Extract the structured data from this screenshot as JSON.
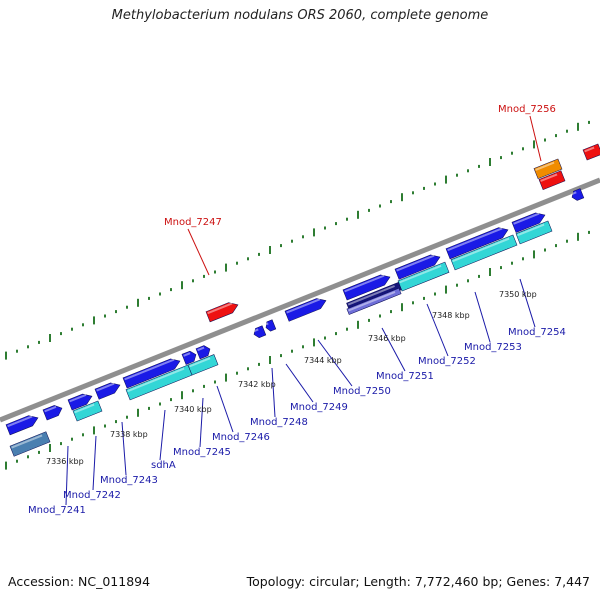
{
  "title": "Methylobacterium nodulans ORS 2060, complete genome",
  "footer": {
    "accession": "Accession: NC_011894",
    "summary": "Topology: circular; Length: 7,772,460 bp; Genes: 7,447"
  },
  "colors": {
    "backbone": "#8f8f8f",
    "tick": "#2e7d32",
    "forward_gene": "#1a1ae6",
    "cds": "#33d6d6",
    "highlight_gene": "#ee1111",
    "orange_gene": "#f08c00",
    "dark_gene": "#15157a",
    "pale_gene": "#6e6ed8",
    "steel_gene": "#4a7fb0",
    "label_blue": "#1a1aa8",
    "label_red": "#cc1111"
  },
  "kbp_labels": [
    "7336 kbp",
    "7338 kbp",
    "7340 kbp",
    "7342 kbp",
    "7344 kbp",
    "7346 kbp",
    "7348 kbp",
    "7350 kbp"
  ],
  "gene_labels": [
    {
      "text": "Mnod_7241",
      "color": "blue"
    },
    {
      "text": "Mnod_7242",
      "color": "blue"
    },
    {
      "text": "Mnod_7243",
      "color": "blue"
    },
    {
      "text": "sdhA",
      "color": "blue"
    },
    {
      "text": "Mnod_7245",
      "color": "blue"
    },
    {
      "text": "Mnod_7246",
      "color": "blue"
    },
    {
      "text": "Mnod_7248",
      "color": "blue"
    },
    {
      "text": "Mnod_7249",
      "color": "blue"
    },
    {
      "text": "Mnod_7250",
      "color": "blue"
    },
    {
      "text": "Mnod_7251",
      "color": "blue"
    },
    {
      "text": "Mnod_7252",
      "color": "blue"
    },
    {
      "text": "Mnod_7253",
      "color": "blue"
    },
    {
      "text": "Mnod_7254",
      "color": "blue"
    },
    {
      "text": "Mnod_7247",
      "color": "red"
    },
    {
      "text": "Mnod_7256",
      "color": "red"
    }
  ]
}
